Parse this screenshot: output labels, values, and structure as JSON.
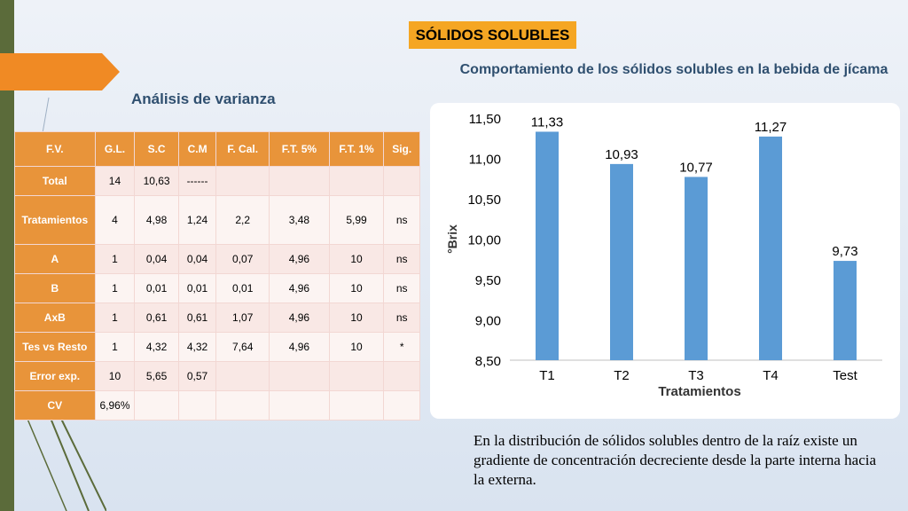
{
  "title": "SÓLIDOS SOLUBLES",
  "subtitle": "Análisis de varianza",
  "anova": {
    "headers": [
      "F.V.",
      "G.L.",
      "S.C",
      "C.M",
      "F. Cal.",
      "F.T. 5%",
      "F.T. 1%",
      "Sig."
    ],
    "rows": [
      [
        "Total",
        "14",
        "10,63",
        "------",
        "",
        "",
        "",
        ""
      ],
      [
        "Tratamientos",
        "4",
        "4,98",
        "1,24",
        "2,2",
        "3,48",
        "5,99",
        "ns"
      ],
      [
        "A",
        "1",
        "0,04",
        "0,04",
        "0,07",
        "4,96",
        "10",
        "ns"
      ],
      [
        "B",
        "1",
        "0,01",
        "0,01",
        "0,01",
        "4,96",
        "10",
        "ns"
      ],
      [
        "AxB",
        "1",
        "0,61",
        "0,61",
        "1,07",
        "4,96",
        "10",
        "ns"
      ],
      [
        "Tes vs Resto",
        "1",
        "4,32",
        "4,32",
        "7,64",
        "4,96",
        "10",
        "*"
      ],
      [
        "Error exp.",
        "10",
        "5,65",
        "0,57",
        "",
        "",
        "",
        ""
      ],
      [
        "CV",
        "6,96%",
        "",
        "",
        "",
        "",
        "",
        ""
      ]
    ]
  },
  "chart_data": {
    "type": "bar",
    "title": "Comportamiento de los sólidos solubles en la bebida de jícama",
    "categories": [
      "T1",
      "T2",
      "T3",
      "T4",
      "Test"
    ],
    "values": [
      11.33,
      10.93,
      10.77,
      11.27,
      9.73
    ],
    "value_labels": [
      "11,33",
      "10,93",
      "10,77",
      "11,27",
      "9,73"
    ],
    "xlabel": "Tratamientos",
    "ylabel": "°Brix",
    "ylim": [
      8.5,
      11.5
    ],
    "yticks": [
      8.5,
      9.0,
      9.5,
      10.0,
      10.5,
      11.0,
      11.5
    ],
    "ytick_labels": [
      "8,50",
      "9,00",
      "9,50",
      "10,00",
      "10,50",
      "11,00",
      "11,50"
    ],
    "grid": false,
    "bar_color": "#5b9bd5"
  },
  "caption": "En la distribución de sólidos solubles dentro de la raíz existe un gradiente de concentración decreciente desde la parte interna hacia la externa."
}
